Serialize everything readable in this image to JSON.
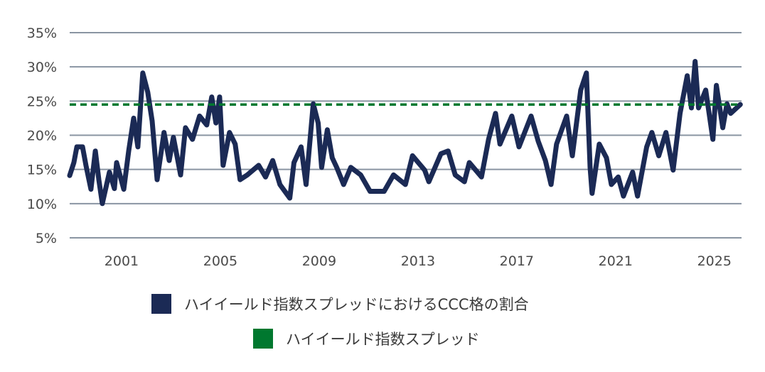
{
  "chart_data": {
    "type": "line",
    "title": "",
    "xlabel": "",
    "ylabel": "",
    "ylim": [
      5,
      35
    ],
    "xlim": [
      1998.9,
      2026.1
    ],
    "y_ticks": [
      "5%",
      "10%",
      "15%",
      "20%",
      "25%",
      "30%",
      "35%"
    ],
    "y_tick_values": [
      5,
      10,
      15,
      20,
      25,
      30,
      35
    ],
    "x_ticks": [
      "2001",
      "2005",
      "2009",
      "2013",
      "2017",
      "2021",
      "2025"
    ],
    "x_tick_values": [
      2001,
      2005,
      2009,
      2013,
      2017,
      2021,
      2025
    ],
    "grid": "horizontal",
    "legend_placement": "bottom",
    "series": [
      {
        "name": "ハイイールド指数スプレッドにおけるCCC格の割合",
        "color": "#1b2a55",
        "style": "solid",
        "x": [
          1998.9,
          1999.07,
          1999.19,
          1999.42,
          1999.56,
          1999.76,
          1999.94,
          2000.08,
          2000.22,
          2000.51,
          2000.71,
          2000.8,
          2001.09,
          2001.29,
          2001.49,
          2001.66,
          2001.86,
          2002.06,
          2002.24,
          2002.44,
          2002.72,
          2002.93,
          2003.1,
          2003.39,
          2003.59,
          2003.87,
          2004.16,
          2004.45,
          2004.65,
          2004.82,
          2004.97,
          2005.11,
          2005.37,
          2005.6,
          2005.8,
          2006.09,
          2006.55,
          2006.83,
          2007.12,
          2007.41,
          2007.81,
          2007.98,
          2008.27,
          2008.47,
          2008.76,
          2008.96,
          2009.1,
          2009.33,
          2009.53,
          2009.71,
          2009.99,
          2010.28,
          2010.68,
          2011.06,
          2011.63,
          2012.01,
          2012.49,
          2012.78,
          2013.27,
          2013.44,
          2013.93,
          2014.22,
          2014.51,
          2014.88,
          2015.08,
          2015.57,
          2015.86,
          2016.14,
          2016.32,
          2016.8,
          2017.09,
          2017.58,
          2017.87,
          2018.16,
          2018.39,
          2018.61,
          2019.02,
          2019.25,
          2019.59,
          2019.82,
          2019.97,
          2020.05,
          2020.34,
          2020.63,
          2020.83,
          2021.11,
          2021.32,
          2021.69,
          2021.89,
          2022.26,
          2022.47,
          2022.75,
          2023.04,
          2023.33,
          2023.61,
          2023.9,
          2024.07,
          2024.22,
          2024.36,
          2024.65,
          2024.94,
          2025.08,
          2025.34,
          2025.51,
          2025.66,
          2026.05
        ],
        "values": [
          14.1,
          16,
          18.3,
          18.3,
          15.6,
          12.1,
          17.7,
          13.5,
          10,
          14.6,
          12.2,
          16,
          12.1,
          17.7,
          22.5,
          18.3,
          29.1,
          26.3,
          22.1,
          13.5,
          20.4,
          16.3,
          19.7,
          14.2,
          21.1,
          19.4,
          22.8,
          21.5,
          25.6,
          21.8,
          25.6,
          15.6,
          20.4,
          18.7,
          13.5,
          14.2,
          15.6,
          13.9,
          16.3,
          12.8,
          10.8,
          16,
          18.3,
          12.8,
          24.6,
          21.8,
          15.3,
          20.8,
          16.7,
          15.3,
          12.8,
          15.3,
          14.2,
          11.8,
          11.8,
          14.2,
          12.8,
          17,
          14.9,
          13.2,
          17.3,
          17.7,
          14.2,
          13.2,
          16,
          13.9,
          19.4,
          23.2,
          18.7,
          22.8,
          18.3,
          22.8,
          19.1,
          16.3,
          12.8,
          18.7,
          22.8,
          17,
          26.6,
          29.1,
          15.3,
          11.5,
          18.7,
          16.7,
          12.8,
          13.9,
          11.1,
          14.6,
          11.1,
          18.3,
          20.4,
          17,
          20.4,
          14.9,
          23.2,
          28.7,
          24,
          30.8,
          24,
          26.6,
          19.4,
          27.3,
          21.1,
          24.6,
          23.2,
          24.5
        ]
      },
      {
        "name": "ハイイールド指数スプレッド",
        "color": "#00782f",
        "style": "dashed",
        "x": [
          1998.9,
          2026.1
        ],
        "values": [
          24.5,
          24.5
        ]
      }
    ]
  }
}
